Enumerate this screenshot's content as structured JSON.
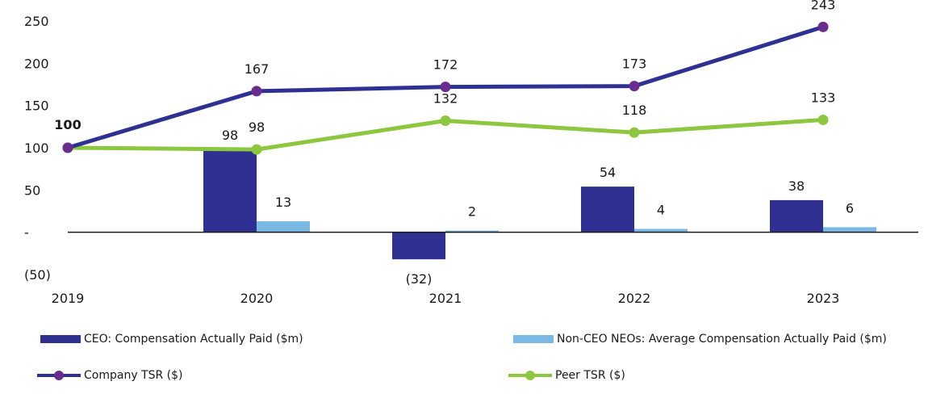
{
  "chart_data": {
    "type": "bar+line",
    "categories": [
      "2019",
      "2020",
      "2021",
      "2022",
      "2023"
    ],
    "ylim": [
      -50,
      250
    ],
    "yticks": [
      -50,
      0,
      50,
      100,
      150,
      200,
      250
    ],
    "ytick_labels": [
      "(50)",
      "-",
      "50",
      "100",
      "150",
      "200",
      "250"
    ],
    "bar_series": [
      {
        "name": "CEO: Compensation Actually Paid ($m)",
        "values": [
          null,
          98,
          -32,
          54,
          38
        ],
        "labels": [
          "",
          "98",
          "(32)",
          "54",
          "38"
        ],
        "color": "#2e3192"
      },
      {
        "name": "Non-CEO NEOs: Average Compensation Actually Paid ($m)",
        "values": [
          null,
          13,
          2,
          4,
          6
        ],
        "labels": [
          "",
          "13",
          "2",
          "4",
          "6"
        ],
        "color": "#7cb8e4"
      }
    ],
    "line_series": [
      {
        "name": "Company TSR ($)",
        "values": [
          100,
          167,
          172,
          173,
          243
        ],
        "labels": [
          "100",
          "167",
          "172",
          "173",
          "243"
        ],
        "color": "#2e3192",
        "marker_color": "#6a2c8e"
      },
      {
        "name": "Peer TSR ($)",
        "values": [
          100,
          98,
          132,
          118,
          133
        ],
        "labels": [
          "",
          "98",
          "132",
          "118",
          "133"
        ],
        "color": "#8dc63f",
        "marker_color": "#8dc63f"
      }
    ]
  },
  "legend": {
    "ceo_label": "CEO: Compensation Actually Paid ($m)",
    "neo_label": "Non-CEO NEOs: Average Compensation Actually Paid ($m)",
    "company_label": "Company TSR ($)",
    "peer_label": "Peer TSR ($)"
  }
}
